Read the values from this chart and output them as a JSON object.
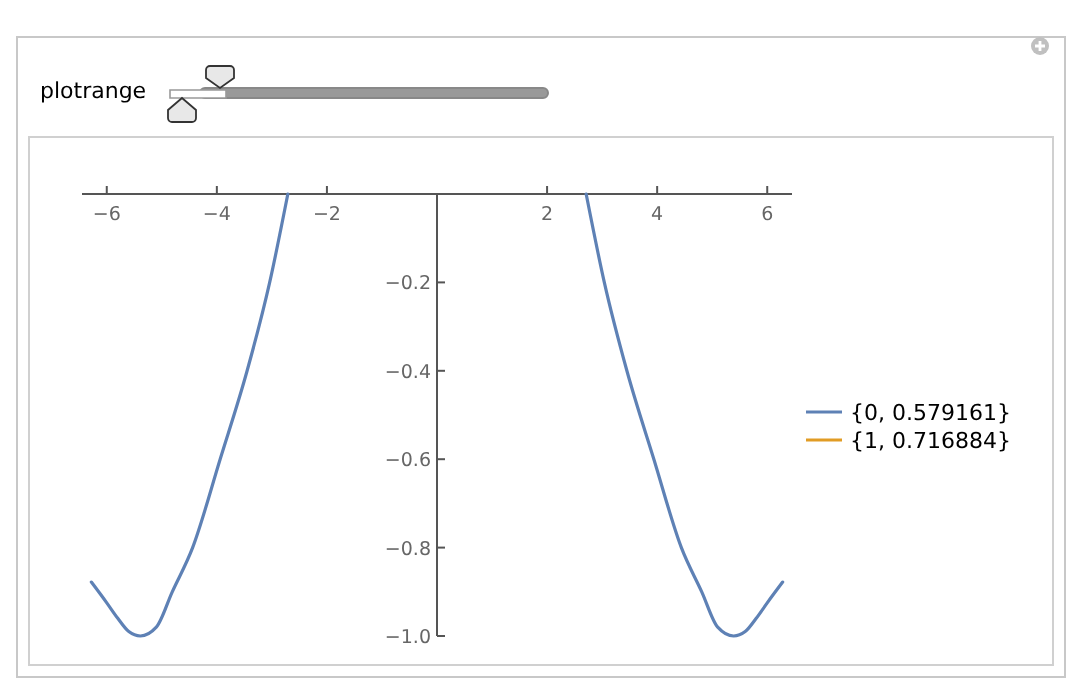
{
  "chart_data": {
    "type": "line",
    "x": [
      -6.28,
      -6.0,
      -5.8,
      -5.6,
      -5.39,
      -5.1,
      -4.81,
      -4.44,
      -3.94,
      -3.45,
      -3.04,
      -2.71,
      0,
      2.71,
      3.04,
      3.45,
      3.94,
      4.44,
      4.81,
      5.1,
      5.39,
      5.6,
      5.8,
      6.0,
      6.28
    ],
    "series": [
      {
        "name": "{0, 0.579161}",
        "color": "#5e81b5",
        "values": [
          -0.878,
          -0.925,
          -0.96,
          -0.99,
          -1.0,
          -0.98,
          -0.9,
          -0.8,
          -0.6,
          -0.4,
          -0.2,
          0,
          null,
          0,
          -0.2,
          -0.4,
          -0.6,
          -0.8,
          -0.9,
          -0.98,
          -1.0,
          -0.99,
          -0.96,
          -0.925,
          -0.878
        ]
      },
      {
        "name": "{1, 0.716884}",
        "color": "#e19c24",
        "values": [
          null,
          null,
          null,
          null,
          null,
          null,
          null,
          null,
          null,
          null,
          null,
          null,
          null,
          null,
          null,
          null,
          null,
          null,
          null,
          null,
          null,
          null,
          null,
          null,
          null
        ]
      }
    ],
    "xlim": [
      -6.45,
      6.45
    ],
    "ylim": [
      -1.0,
      0
    ],
    "xticks": [
      {
        "value": -6,
        "label": "−6"
      },
      {
        "value": -4,
        "label": "−4"
      },
      {
        "value": -2,
        "label": "−2"
      },
      2,
      4,
      6
    ],
    "yticks": [
      {
        "value": -1.0,
        "label": "−1.0"
      },
      {
        "value": -0.8,
        "label": "−0.8"
      },
      {
        "value": -0.6,
        "label": "−0.6"
      },
      {
        "value": -0.4,
        "label": "−0.4"
      },
      {
        "value": -0.2,
        "label": "−0.2"
      }
    ],
    "legend": "right",
    "marker": "none",
    "line_style": "solid",
    "annotations": [
      "plotrange"
    ]
  }
}
